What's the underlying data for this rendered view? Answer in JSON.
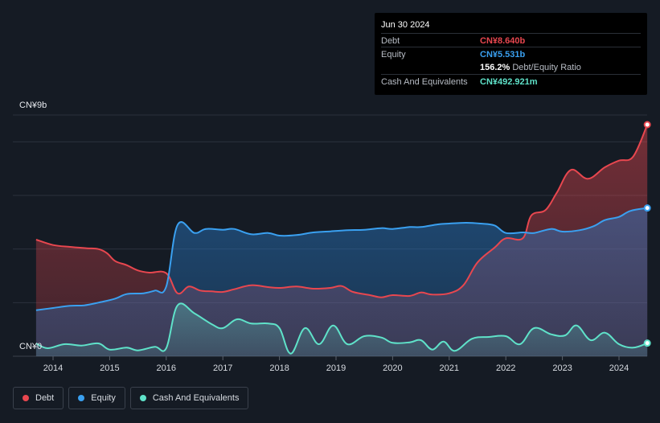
{
  "tooltip": {
    "date": "Jun 30 2024",
    "rows": [
      {
        "label": "Debt",
        "value": "CN¥8.640b",
        "color": "#e8474f",
        "suffix": ""
      },
      {
        "label": "Equity",
        "value": "CN¥5.531b",
        "color": "#3aa0f0",
        "suffix": ""
      },
      {
        "label": "",
        "value": "156.2%",
        "color": "#ffffff",
        "suffix": "Debt/Equity Ratio"
      },
      {
        "label": "Cash And Equivalents",
        "value": "CN¥492.921m",
        "color": "#5fe2c9",
        "suffix": ""
      }
    ]
  },
  "legend": [
    {
      "label": "Debt",
      "color": "#e8474f"
    },
    {
      "label": "Equity",
      "color": "#3aa0f0"
    },
    {
      "label": "Cash And Equivalents",
      "color": "#5fe2c9"
    }
  ],
  "chart_data": {
    "type": "area",
    "ylabel_top": "CN¥9b",
    "ylabel_bottom": "CN¥0",
    "ylim": [
      0,
      9
    ],
    "xlim": [
      2013.7,
      2024.5
    ],
    "x_ticks": [
      "2014",
      "2015",
      "2016",
      "2017",
      "2018",
      "2019",
      "2020",
      "2021",
      "2022",
      "2023",
      "2024"
    ],
    "grid": true,
    "series": [
      {
        "name": "Debt",
        "color": "#e8474f",
        "points": [
          [
            2013.7,
            4.35
          ],
          [
            2014.0,
            4.15
          ],
          [
            2014.3,
            4.08
          ],
          [
            2014.6,
            4.03
          ],
          [
            2014.8,
            4.0
          ],
          [
            2014.95,
            3.85
          ],
          [
            2015.1,
            3.55
          ],
          [
            2015.3,
            3.4
          ],
          [
            2015.5,
            3.2
          ],
          [
            2015.7,
            3.12
          ],
          [
            2016.0,
            3.1
          ],
          [
            2016.2,
            2.35
          ],
          [
            2016.4,
            2.6
          ],
          [
            2016.6,
            2.45
          ],
          [
            2016.8,
            2.42
          ],
          [
            2017.0,
            2.4
          ],
          [
            2017.2,
            2.5
          ],
          [
            2017.5,
            2.65
          ],
          [
            2017.8,
            2.58
          ],
          [
            2018.0,
            2.55
          ],
          [
            2018.3,
            2.6
          ],
          [
            2018.6,
            2.52
          ],
          [
            2018.9,
            2.55
          ],
          [
            2019.1,
            2.62
          ],
          [
            2019.3,
            2.4
          ],
          [
            2019.6,
            2.28
          ],
          [
            2019.8,
            2.2
          ],
          [
            2020.0,
            2.28
          ],
          [
            2020.3,
            2.25
          ],
          [
            2020.5,
            2.38
          ],
          [
            2020.7,
            2.3
          ],
          [
            2021.0,
            2.35
          ],
          [
            2021.25,
            2.65
          ],
          [
            2021.5,
            3.5
          ],
          [
            2021.8,
            4.05
          ],
          [
            2022.0,
            4.4
          ],
          [
            2022.3,
            4.4
          ],
          [
            2022.45,
            5.25
          ],
          [
            2022.7,
            5.45
          ],
          [
            2022.9,
            6.1
          ],
          [
            2023.15,
            6.95
          ],
          [
            2023.45,
            6.62
          ],
          [
            2023.75,
            7.05
          ],
          [
            2024.0,
            7.3
          ],
          [
            2024.25,
            7.45
          ],
          [
            2024.5,
            8.64
          ]
        ]
      },
      {
        "name": "Equity",
        "color": "#3aa0f0",
        "points": [
          [
            2013.7,
            1.72
          ],
          [
            2014.0,
            1.8
          ],
          [
            2014.3,
            1.88
          ],
          [
            2014.55,
            1.9
          ],
          [
            2014.8,
            2.0
          ],
          [
            2015.1,
            2.15
          ],
          [
            2015.3,
            2.32
          ],
          [
            2015.6,
            2.35
          ],
          [
            2015.8,
            2.45
          ],
          [
            2016.0,
            2.6
          ],
          [
            2016.2,
            4.9
          ],
          [
            2016.5,
            4.6
          ],
          [
            2016.7,
            4.75
          ],
          [
            2017.0,
            4.72
          ],
          [
            2017.2,
            4.75
          ],
          [
            2017.5,
            4.55
          ],
          [
            2017.8,
            4.6
          ],
          [
            2018.0,
            4.5
          ],
          [
            2018.3,
            4.52
          ],
          [
            2018.6,
            4.62
          ],
          [
            2018.9,
            4.66
          ],
          [
            2019.2,
            4.7
          ],
          [
            2019.5,
            4.72
          ],
          [
            2019.8,
            4.78
          ],
          [
            2020.0,
            4.75
          ],
          [
            2020.3,
            4.82
          ],
          [
            2020.5,
            4.82
          ],
          [
            2020.8,
            4.92
          ],
          [
            2021.0,
            4.95
          ],
          [
            2021.3,
            4.98
          ],
          [
            2021.55,
            4.95
          ],
          [
            2021.8,
            4.88
          ],
          [
            2022.0,
            4.6
          ],
          [
            2022.3,
            4.62
          ],
          [
            2022.5,
            4.6
          ],
          [
            2022.8,
            4.75
          ],
          [
            2023.0,
            4.65
          ],
          [
            2023.3,
            4.7
          ],
          [
            2023.55,
            4.85
          ],
          [
            2023.75,
            5.08
          ],
          [
            2024.0,
            5.2
          ],
          [
            2024.2,
            5.42
          ],
          [
            2024.5,
            5.531
          ]
        ]
      },
      {
        "name": "Cash And Equivalents",
        "color": "#5fe2c9",
        "points": [
          [
            2013.7,
            0.48
          ],
          [
            2013.9,
            0.3
          ],
          [
            2014.2,
            0.45
          ],
          [
            2014.5,
            0.4
          ],
          [
            2014.8,
            0.48
          ],
          [
            2015.0,
            0.25
          ],
          [
            2015.3,
            0.32
          ],
          [
            2015.5,
            0.22
          ],
          [
            2015.8,
            0.35
          ],
          [
            2016.0,
            0.3
          ],
          [
            2016.2,
            1.9
          ],
          [
            2016.5,
            1.6
          ],
          [
            2016.8,
            1.2
          ],
          [
            2017.0,
            1.05
          ],
          [
            2017.25,
            1.38
          ],
          [
            2017.5,
            1.22
          ],
          [
            2017.8,
            1.22
          ],
          [
            2018.0,
            1.05
          ],
          [
            2018.2,
            0.1
          ],
          [
            2018.45,
            1.05
          ],
          [
            2018.7,
            0.45
          ],
          [
            2018.95,
            1.15
          ],
          [
            2019.2,
            0.45
          ],
          [
            2019.5,
            0.75
          ],
          [
            2019.8,
            0.7
          ],
          [
            2020.0,
            0.5
          ],
          [
            2020.3,
            0.52
          ],
          [
            2020.5,
            0.6
          ],
          [
            2020.7,
            0.25
          ],
          [
            2020.9,
            0.55
          ],
          [
            2021.1,
            0.2
          ],
          [
            2021.4,
            0.65
          ],
          [
            2021.7,
            0.72
          ],
          [
            2022.0,
            0.75
          ],
          [
            2022.25,
            0.45
          ],
          [
            2022.5,
            1.05
          ],
          [
            2022.8,
            0.82
          ],
          [
            2023.05,
            0.78
          ],
          [
            2023.25,
            1.15
          ],
          [
            2023.5,
            0.6
          ],
          [
            2023.75,
            0.88
          ],
          [
            2024.0,
            0.45
          ],
          [
            2024.25,
            0.32
          ],
          [
            2024.5,
            0.49
          ]
        ]
      }
    ]
  }
}
